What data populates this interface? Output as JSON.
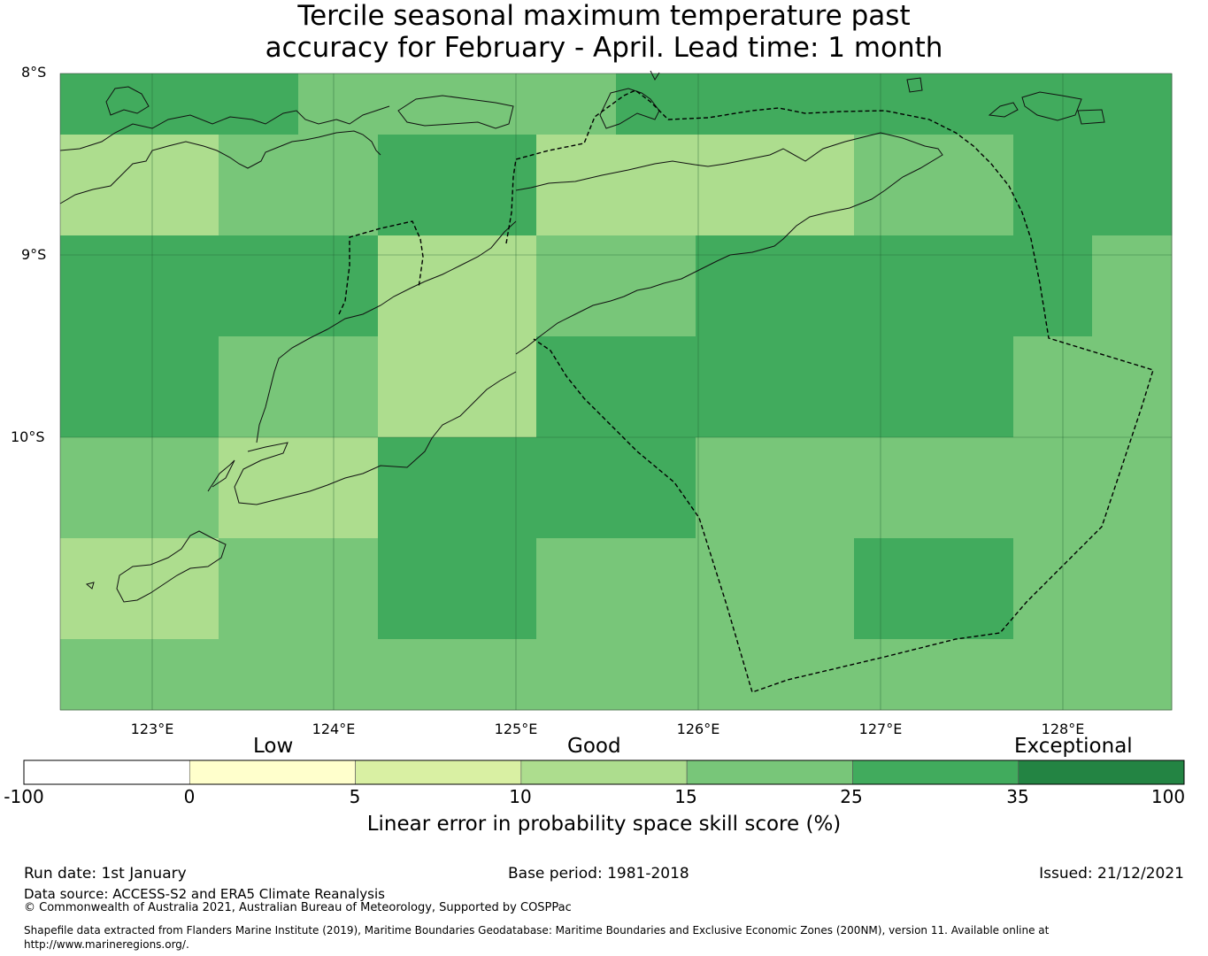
{
  "title": {
    "line1": "Tercile seasonal maximum temperature past",
    "line2": "accuracy for February - April. Lead time: 1 month"
  },
  "map": {
    "lat_labels": [
      "8°S",
      "9°S",
      "10°S"
    ],
    "lon_labels": [
      "123°E",
      "124°E",
      "125°E",
      "126°E",
      "127°E",
      "128°E"
    ],
    "lat_range": [
      -11.5,
      -8.0
    ],
    "lon_range": [
      122.5,
      128.6
    ],
    "grid_cell_levels": [
      [
        5,
        5,
        5,
        4,
        4,
        4,
        4,
        5,
        5,
        5,
        5,
        5,
        5,
        5
      ],
      [
        3,
        3,
        4,
        4,
        5,
        5,
        3,
        3,
        3,
        3,
        4,
        4,
        5,
        5
      ],
      [
        5,
        5,
        5,
        5,
        3,
        3,
        4,
        4,
        5,
        5,
        5,
        5,
        5,
        4
      ],
      [
        5,
        5,
        4,
        4,
        3,
        3,
        5,
        5,
        5,
        5,
        5,
        5,
        4,
        4
      ],
      [
        4,
        4,
        3,
        3,
        5,
        5,
        5,
        5,
        4,
        4,
        4,
        4,
        4,
        4
      ],
      [
        3,
        3,
        4,
        4,
        5,
        5,
        4,
        4,
        4,
        4,
        5,
        5,
        4,
        4
      ],
      [
        4,
        4,
        4,
        4,
        4,
        4,
        4,
        4,
        4,
        4,
        4,
        4,
        4,
        4
      ]
    ]
  },
  "colorbar": {
    "categories": [
      "Low",
      "Good",
      "Exceptional"
    ],
    "ticks": [
      "-100",
      "0",
      "5",
      "10",
      "15",
      "25",
      "35",
      "100"
    ],
    "colors": [
      "#ffffff",
      "#ffffcc",
      "#d9f0a3",
      "#addd8e",
      "#78c679",
      "#41ab5d",
      "#238443"
    ],
    "title": "Linear error in probability space skill score (%)"
  },
  "footer": {
    "run_date": "Run date: 1st January",
    "base_period": "Base period: 1981-2018",
    "issued": "Issued: 21/12/2021",
    "data_source": "Data source: ACCESS-S2 and ERA5 Climate Reanalysis",
    "copyright": "© Commonwealth of Australia 2021, Australian Bureau of Meteorology, Supported by COSPPac",
    "shapefile_line1": "Shapefile data extracted from Flanders Marine Institute (2019), Maritime Boundaries Geodatabase: Maritime Boundaries and Exclusive Economic Zones (200NM), version 11. Available online at",
    "shapefile_line2": "http://www.marineregions.org/."
  }
}
